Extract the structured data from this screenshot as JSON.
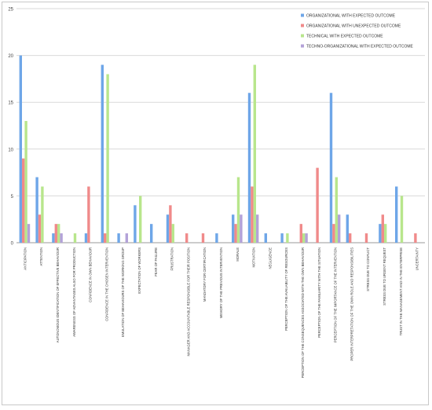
{
  "chart_data": {
    "type": "bar",
    "title": "",
    "xlabel": "",
    "ylabel": "",
    "ylim": [
      0,
      25
    ],
    "yticks": [
      0,
      5,
      10,
      15,
      20,
      25
    ],
    "grid": true,
    "legend_position": "top-right",
    "categories": [
      "ANTICIPATION",
      "ATTENTION",
      "AUTONOMOUS IDENTIFICATION OF EFFECTIVE BEHAVIOUR",
      "AWARENESS OF ADVANTAGES ALSO FOR PRODUCTION",
      "CONFIDENCE IN OWN BEHAVIOUR",
      "CONFIDENCE IN THE CHOSEN INTERVENTION",
      "EMULATION OF BEHAVIOURS OF THE WORKING GROUP",
      "EXPECTATION OF WORKERS",
      "FEAR OF FAILURE",
      "FRUSTRATION",
      "MANAGER AND ACCOUNTABLE RESPONSIBLE FOR THEIR POSITION",
      "MANDATORY FOR CERTIFICATION",
      "MEMORY OF THE PREVIOUS INTERVENTION",
      "MORALE",
      "MOTIVATION",
      "NEGLIGENCE",
      "PERCEPTION OF THE AVAILABILITY OF RESOURCES",
      "PERCEPTION OF THE CONSEQUENCES ASSOCIATED WITH THE OWN BEHAVIOUR",
      "PERCEPTION OF THE FAMILIARITY WITH THE SITUATION",
      "PERCEPTION OF THE IMPORTANCE OF THE INTERVENTION",
      "PROPER INTERPRETATION OF THE OWN ROLE AND RESPONSIBILITIES",
      "STRESS DUE TO CONFLICT",
      "STRESS DUE TO URGENT REQUEST",
      "TRUST IN THE MANAGEMENT AND IN THE ENTERPRISE",
      "UNCERTAINTY"
    ],
    "series": [
      {
        "name": "ORGANIZATIONAL WITH EXPECTED OUTCOME",
        "color": "#6ea6e8",
        "values": [
          20,
          7,
          1,
          0,
          1,
          19,
          1,
          4,
          2,
          3,
          0,
          0,
          1,
          3,
          16,
          1,
          1,
          0,
          0,
          16,
          3,
          0,
          2,
          6,
          0
        ]
      },
      {
        "name": "ORGANIZATIONAL WITH UNEXPECTED OUTCOME",
        "color": "#f08a8a",
        "values": [
          9,
          3,
          2,
          0,
          6,
          1,
          0,
          0,
          0,
          4,
          1,
          1,
          0,
          2,
          6,
          0,
          0,
          2,
          8,
          2,
          1,
          1,
          3,
          0,
          1
        ]
      },
      {
        "name": "TECHNICAL WITH EXPECTED OUTCOME",
        "color": "#b8e68c",
        "values": [
          13,
          6,
          2,
          1,
          0,
          18,
          0,
          5,
          0,
          2,
          0,
          0,
          0,
          7,
          19,
          0,
          1,
          1,
          0,
          7,
          0,
          0,
          2,
          5,
          0
        ]
      },
      {
        "name": "TECHNO-ORGANIZATIONAL WITH EXPECTED OUTCOME",
        "color": "#b3a2d8",
        "values": [
          2,
          0,
          1,
          0,
          0,
          0,
          1,
          0,
          0,
          0,
          0,
          0,
          0,
          3,
          3,
          0,
          0,
          1,
          0,
          3,
          0,
          0,
          0,
          0,
          0
        ]
      }
    ]
  }
}
